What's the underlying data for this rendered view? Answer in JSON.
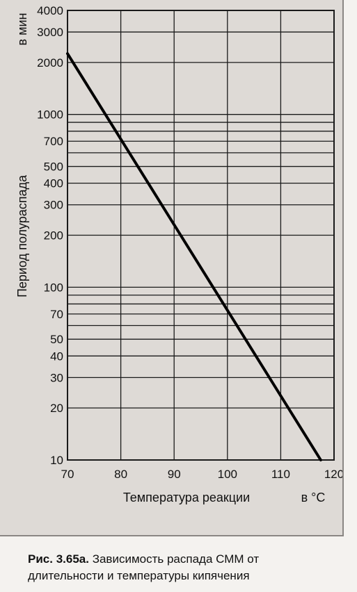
{
  "chart_data": {
    "type": "line",
    "title": "",
    "xlabel": "Температура реакции",
    "xunit": "в °C",
    "ylabel": "Период полураспада",
    "yunit": "в мин",
    "yscale": "log",
    "xlim": [
      70,
      120
    ],
    "ylim": [
      10,
      4000
    ],
    "x_ticks": [
      "70",
      "80",
      "90",
      "100",
      "110",
      "120"
    ],
    "y_ticks": [
      "4000",
      "3000",
      "2000",
      "1000",
      "900",
      "800",
      "700",
      "600",
      "500",
      "400",
      "300",
      "200",
      "100",
      "90",
      "80",
      "70",
      "60",
      "50",
      "40",
      "30",
      "20",
      "10"
    ],
    "y_tick_labels": [
      "4000",
      "3000",
      "2000",
      "1000",
      "700",
      "500",
      "400",
      "300",
      "200",
      "100",
      "70",
      "50",
      "40",
      "30",
      "20",
      "10"
    ],
    "grid": true,
    "series": [
      {
        "x": [
          70,
          117.5
        ],
        "y": [
          2250,
          10
        ]
      }
    ]
  },
  "caption": {
    "lead": "Рис. 3.65а.",
    "line1": "Зависимость распада СММ от",
    "line2": "длительности и температуры кипячения"
  },
  "colors": {
    "panel": "#dedad6",
    "grid": "#1a1a1a",
    "line": "#000000"
  }
}
